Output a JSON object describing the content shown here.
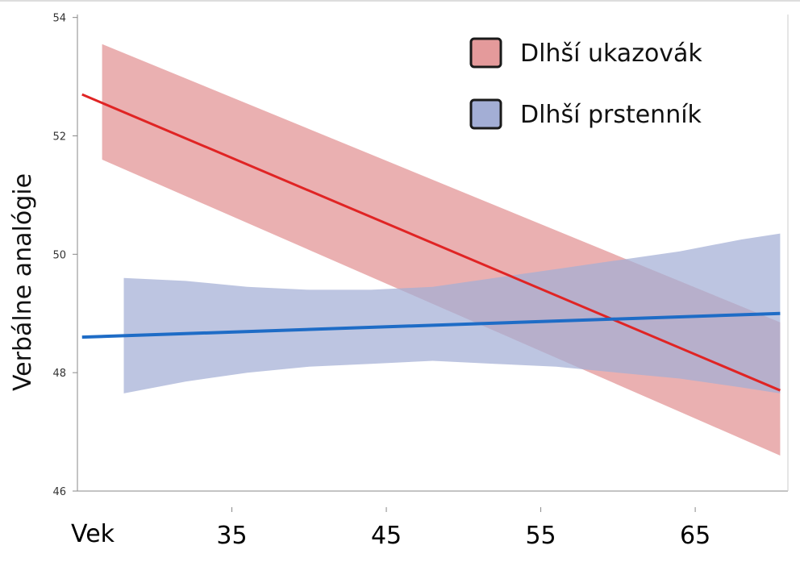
{
  "chart_data": {
    "type": "line",
    "xlabel": "Vek",
    "ylabel": "Verbálne analógie",
    "x_ticks": [
      35,
      45,
      55,
      65
    ],
    "y_ticks": [
      46,
      48,
      50,
      52,
      54
    ],
    "xlim": [
      25,
      71
    ],
    "ylim": [
      46,
      54.05
    ],
    "grid": false,
    "legend_position": "top-right",
    "series": [
      {
        "name": "Dlhší ukazovák",
        "line_color": "#e02424",
        "band_color": "#e49a9b",
        "line": {
          "x": [
            25.3,
            70.5
          ],
          "y": [
            52.7,
            47.7
          ]
        },
        "band": {
          "x": [
            26.6,
            70.5
          ],
          "upper": [
            53.55,
            48.85
          ],
          "lower": [
            51.6,
            46.6
          ]
        }
      },
      {
        "name": "Dlhší prstenník",
        "line_color": "#1e6cc6",
        "band_color": "#a3aed5",
        "line": {
          "x": [
            25.3,
            70.5
          ],
          "y": [
            48.6,
            49.0
          ]
        },
        "band": {
          "x": [
            28.0,
            32.0,
            36.0,
            40.0,
            44.0,
            48.0,
            52.0,
            56.0,
            60.0,
            64.0,
            68.0,
            70.5
          ],
          "upper": [
            49.6,
            49.55,
            49.45,
            49.4,
            49.4,
            49.45,
            49.6,
            49.75,
            49.9,
            50.05,
            50.25,
            50.35
          ],
          "lower": [
            47.65,
            47.85,
            48.0,
            48.1,
            48.15,
            48.2,
            48.15,
            48.1,
            48.0,
            47.9,
            47.75,
            47.65
          ]
        }
      }
    ]
  }
}
